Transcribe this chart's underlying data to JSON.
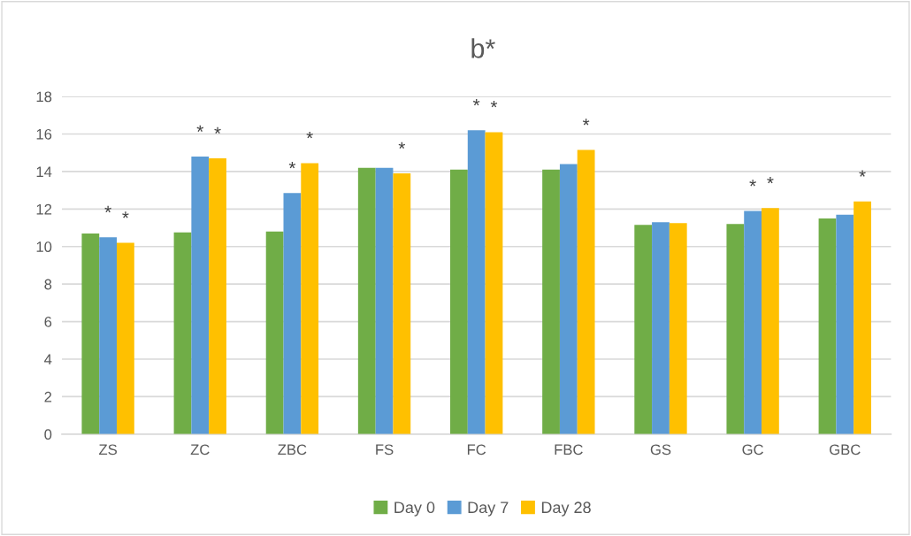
{
  "chart_data": {
    "type": "bar",
    "title": "b*",
    "categories": [
      "ZS",
      "ZC",
      "ZBC",
      "FS",
      "FC",
      "FBC",
      "GS",
      "GC",
      "GBC"
    ],
    "series": [
      {
        "name": "Day 0",
        "color": "#70ad47",
        "values": [
          10.7,
          10.75,
          10.8,
          14.2,
          14.1,
          14.1,
          11.15,
          11.2,
          11.5
        ]
      },
      {
        "name": "Day 7",
        "color": "#5b9bd5",
        "values": [
          10.5,
          14.8,
          12.85,
          14.2,
          16.2,
          14.4,
          11.3,
          11.9,
          11.7
        ],
        "value_labels": [
          "*",
          "*",
          "*",
          null,
          "*",
          null,
          null,
          "*",
          null
        ]
      },
      {
        "name": "Day 28",
        "color": "#ffc000",
        "values": [
          10.2,
          14.7,
          14.45,
          13.9,
          16.1,
          15.15,
          11.25,
          12.05,
          12.4
        ],
        "value_labels": [
          "*",
          "*",
          "*",
          "*",
          "*",
          "*",
          null,
          "*",
          "*"
        ]
      }
    ],
    "ylim": [
      0,
      18
    ],
    "yticks": [
      0,
      2,
      4,
      6,
      8,
      10,
      12,
      14,
      16,
      18
    ],
    "grid": "y",
    "legend": "bottom"
  }
}
